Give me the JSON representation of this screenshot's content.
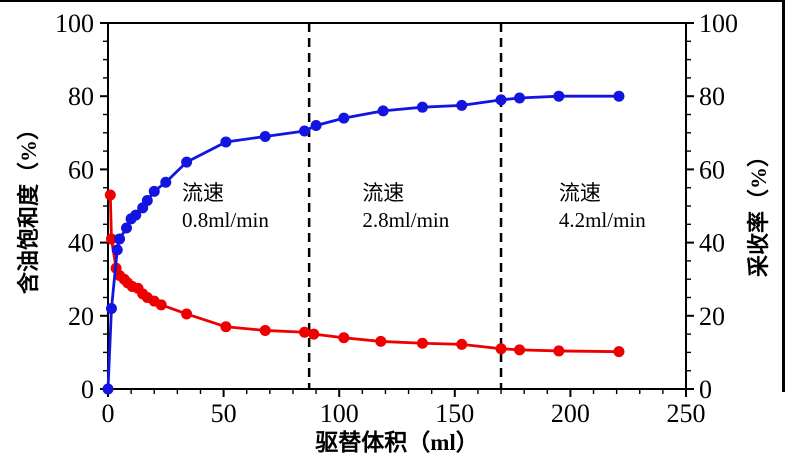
{
  "page": {
    "background": "#ffffff",
    "top_border_color": "#000000",
    "right_border_color": "#000000"
  },
  "chart_data": {
    "type": "line",
    "title": "",
    "xlabel": "驱替体积（ml）",
    "ylabel_left": "含油饱和度（%）",
    "ylabel_right": "采收率（%）",
    "xlim": [
      0,
      250
    ],
    "ylim_left": [
      0,
      100
    ],
    "ylim_right": [
      0,
      100
    ],
    "x_major_ticks": [
      0,
      50,
      100,
      150,
      200,
      250
    ],
    "y_major_ticks": [
      0,
      20,
      40,
      60,
      80,
      100
    ],
    "x_minor_step": 10,
    "y_minor_step": 5,
    "grid": false,
    "legend": "none",
    "axis_color": "#000000",
    "series": [
      {
        "name": "含油饱和度",
        "axis": "left",
        "color": "#ee0000",
        "marker": "circle",
        "points": [
          [
            1,
            53
          ],
          [
            1.5,
            41
          ],
          [
            3.5,
            33
          ],
          [
            5,
            31
          ],
          [
            7,
            30
          ],
          [
            8.5,
            29
          ],
          [
            10.5,
            28
          ],
          [
            13,
            27.5
          ],
          [
            15,
            26
          ],
          [
            17,
            25
          ],
          [
            20,
            24
          ],
          [
            23,
            23
          ],
          [
            34,
            20.5
          ],
          [
            51,
            17
          ],
          [
            68,
            16
          ],
          [
            85,
            15.5
          ],
          [
            89,
            15
          ],
          [
            102,
            14
          ],
          [
            118,
            13
          ],
          [
            136,
            12.5
          ],
          [
            153,
            12.2
          ],
          [
            170,
            11
          ],
          [
            178,
            10.7
          ],
          [
            195,
            10.4
          ],
          [
            221,
            10.2
          ]
        ]
      },
      {
        "name": "采收率",
        "axis": "right",
        "color": "#1414e0",
        "marker": "circle",
        "points": [
          [
            0,
            0
          ],
          [
            1.5,
            22
          ],
          [
            4,
            38
          ],
          [
            5,
            41
          ],
          [
            8,
            44
          ],
          [
            10,
            46.5
          ],
          [
            12,
            47.5
          ],
          [
            15,
            49.5
          ],
          [
            17,
            51.5
          ],
          [
            20,
            54
          ],
          [
            25,
            56.5
          ],
          [
            34,
            62
          ],
          [
            51,
            67.5
          ],
          [
            68,
            69
          ],
          [
            85,
            70.5
          ],
          [
            90,
            72
          ],
          [
            102,
            74
          ],
          [
            119,
            76
          ],
          [
            136,
            77
          ],
          [
            153,
            77.5
          ],
          [
            170,
            79
          ],
          [
            178,
            79.5
          ],
          [
            195,
            80
          ],
          [
            221,
            80
          ]
        ]
      }
    ],
    "stage_dividers": [
      {
        "x": 87,
        "style": "dashed",
        "color": "#000000"
      },
      {
        "x": 170,
        "style": "dashed",
        "color": "#000000"
      }
    ],
    "annotations": [
      {
        "lines": [
          "流速",
          "0.8ml/min"
        ],
        "x": 32,
        "y": 57
      },
      {
        "lines": [
          "流速",
          "2.8ml/min"
        ],
        "x": 110,
        "y": 57
      },
      {
        "lines": [
          "流速",
          "4.2ml/min"
        ],
        "x": 195,
        "y": 57
      }
    ]
  }
}
